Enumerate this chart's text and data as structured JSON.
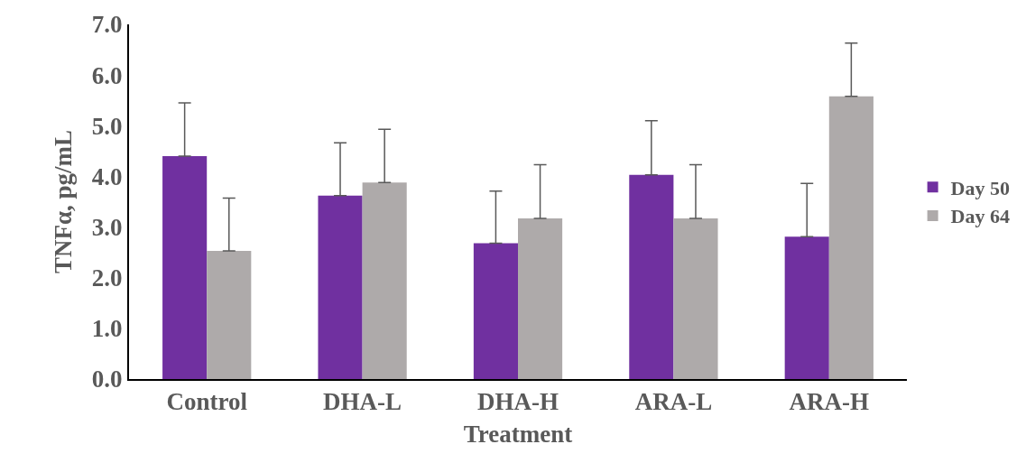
{
  "chart_data": {
    "type": "bar",
    "xlabel": "Treatment",
    "ylabel": "TNFα, pg/mL",
    "categories": [
      "Control",
      "DHA-L",
      "DHA-H",
      "ARA-L",
      "ARA-H"
    ],
    "series": [
      {
        "name": "Day 50",
        "color": "#7030a0",
        "values": [
          4.4,
          3.62,
          2.68,
          4.03,
          2.81
        ],
        "errors": [
          [
            4.4,
            5.45
          ],
          [
            3.62,
            4.66
          ],
          [
            2.68,
            3.71
          ],
          [
            4.03,
            5.1
          ],
          [
            2.81,
            3.86
          ]
        ]
      },
      {
        "name": "Day 64",
        "color": "#aeaaaa",
        "values": [
          2.53,
          3.88,
          3.17,
          3.17,
          5.58
        ],
        "errors": [
          [
            2.53,
            3.57
          ],
          [
            3.88,
            4.93
          ],
          [
            3.17,
            4.23
          ],
          [
            3.17,
            4.23
          ],
          [
            5.58,
            6.63
          ]
        ]
      }
    ],
    "ylim": [
      0,
      7
    ],
    "yticks": [
      {
        "value": 0,
        "label": "0.0"
      },
      {
        "value": 1,
        "label": "1.0"
      },
      {
        "value": 2,
        "label": "2.0"
      },
      {
        "value": 3,
        "label": "3.0"
      },
      {
        "value": 4,
        "label": "4.0"
      },
      {
        "value": 5,
        "label": "5.0"
      },
      {
        "value": 6,
        "label": "6.0"
      },
      {
        "value": 7,
        "label": "7.0"
      }
    ],
    "legend": "right"
  }
}
